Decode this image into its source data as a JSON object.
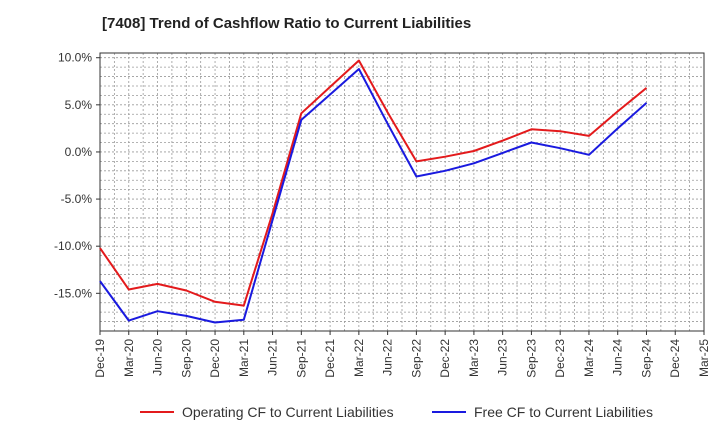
{
  "chart_data": {
    "type": "line",
    "title": "[7408]  Trend of Cashflow Ratio to Current Liabilities",
    "xlabel": "",
    "ylabel": "",
    "categories": [
      "Dec-19",
      "Mar-20",
      "Jun-20",
      "Sep-20",
      "Dec-20",
      "Mar-21",
      "Jun-21",
      "Sep-21",
      "Dec-21",
      "Mar-22",
      "Jun-22",
      "Sep-22",
      "Dec-22",
      "Mar-23",
      "Jun-23",
      "Sep-23",
      "Dec-23",
      "Mar-24",
      "Jun-24",
      "Sep-24",
      "Dec-24",
      "Mar-25"
    ],
    "ylim": [
      -19,
      10.5
    ],
    "yticks": [
      10,
      5,
      0,
      -5,
      -10,
      -15
    ],
    "ytick_labels": [
      "10.0%",
      "5.0%",
      "0.0%",
      "-5.0%",
      "-10.0%",
      "-15.0%"
    ],
    "grid": true,
    "legend_position": "bottom",
    "series": [
      {
        "name": "Operating CF to Current Liabilities",
        "color": "#e31a1c",
        "values": [
          -10.2,
          -14.6,
          -14.0,
          -14.7,
          -15.9,
          -16.3,
          -6.5,
          4.1,
          6.9,
          9.7,
          4.2,
          -1.0,
          -0.5,
          0.1,
          1.2,
          2.4,
          2.2,
          1.7,
          4.3,
          6.8,
          null,
          null
        ]
      },
      {
        "name": "Free CF to Current Liabilities",
        "color": "#1a1adf",
        "values": [
          -13.7,
          -17.9,
          -16.9,
          -17.4,
          -18.1,
          -17.8,
          -7.2,
          3.4,
          6.1,
          8.8,
          3.0,
          -2.6,
          -2.0,
          -1.2,
          -0.1,
          1.0,
          0.4,
          -0.3,
          2.5,
          5.2,
          null,
          null
        ]
      }
    ]
  }
}
